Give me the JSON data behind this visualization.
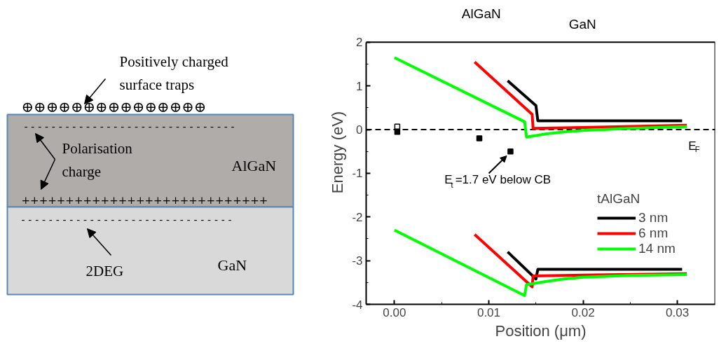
{
  "chart_data": [
    {
      "type": "other",
      "annotations": [
        "Positively charged\nsurface traps",
        "⊕⊕⊕⊕⊕⊕⊕⊕⊕⊕⊕⊕⊕⊕⊕",
        "- - - - - - - - - - - - - - - - - - - - - - - - - - - - - - -",
        "Polarisation\ncharge",
        "AlGaN",
        "++++++++++++++++++++++++++++",
        "- - - - - - - - - - - - - - - - - - - - - - - - - - - - - - -",
        "2DEG",
        "GaN"
      ]
    },
    {
      "type": "line",
      "xlabel": "Position (μm)",
      "ylabel": "Energy (eV)",
      "legend_title": "tAlGaN",
      "legend": "bottom right",
      "grid": false,
      "xlim": [
        -0.003,
        0.034
      ],
      "ylim": [
        -4,
        2
      ],
      "xticks": [
        {
          "value": 0,
          "label": "0.00"
        },
        {
          "value": 0.01,
          "label": "0.01"
        },
        {
          "value": 0.02,
          "label": "0.02"
        },
        {
          "value": 0.03,
          "label": "0.03"
        }
      ],
      "yticks": [
        -4,
        -3,
        -2,
        -1,
        0,
        1,
        2
      ],
      "series": [
        {
          "name": "3 nm",
          "color": "#000000",
          "x": [
            0.012,
            0.015,
            0.0152,
            0.0305,
            null,
            0.012,
            0.015,
            0.0152,
            0.0305
          ],
          "values": [
            1.12,
            0.55,
            0.2,
            0.2,
            null,
            -2.8,
            -3.42,
            -3.2,
            -3.2
          ]
        },
        {
          "name": "6 nm",
          "color": "#ff0000",
          "x": [
            0.0085,
            0.0146,
            0.0147,
            0.02,
            0.031,
            null,
            0.0085,
            0.0146,
            0.0147,
            0.02,
            0.031
          ],
          "values": [
            1.55,
            0.35,
            0.03,
            0.05,
            0.1,
            null,
            -2.4,
            -3.6,
            -3.35,
            -3.33,
            -3.3
          ]
        },
        {
          "name": "14 nm",
          "color": "#00ff00",
          "x": [
            0,
            0.0138,
            0.014,
            0.016,
            0.018,
            0.02,
            0.025,
            0.031,
            null,
            0,
            0.0138,
            0.014,
            0.016,
            0.018,
            0.02,
            0.025,
            0.031
          ],
          "values": [
            1.65,
            0.18,
            -0.17,
            -0.1,
            -0.05,
            -0.02,
            0.03,
            0.07,
            null,
            -2.3,
            -3.8,
            -3.55,
            -3.48,
            -3.42,
            -3.38,
            -3.34,
            -3.32
          ]
        },
        {
          "type": "scatter",
          "marker": "square",
          "color": "#000000",
          "x": [
            0.0003,
            0.009,
            0.0123
          ],
          "values": [
            -0.05,
            -0.2,
            -0.5
          ]
        },
        {
          "type": "scatter",
          "marker": "square",
          "color": "#ffffff",
          "x": [
            0.0003
          ],
          "values": [
            0.07
          ]
        }
      ],
      "ref_lines": [
        {
          "axis": "y",
          "value": 0,
          "label": "E$_{F}$",
          "color": "#000000",
          "line_style": "dashed"
        }
      ],
      "annotations": [
        {
          "text": "E$_{t}$=1.7 eV below CB",
          "x": 0.0122,
          "y": -0.5
        },
        "AlGaN",
        "GaN"
      ]
    }
  ]
}
